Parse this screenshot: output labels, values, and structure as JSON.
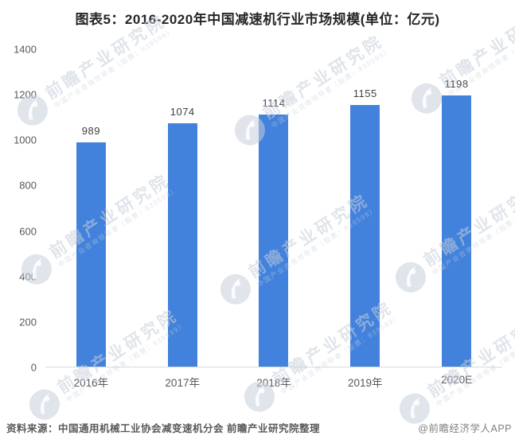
{
  "title": "图表5：2016-2020年中国减速机行业市场规模(单位：亿元)",
  "chart_data": {
    "type": "bar",
    "title": "图表5：2016-2020年中国减速机行业市场规模(单位：亿元)",
    "unit": "亿元",
    "categories": [
      "2016年",
      "2017年",
      "2018年",
      "2019年",
      "2020E"
    ],
    "values": [
      989,
      1074,
      1114,
      1155,
      1198
    ],
    "xlabel": "",
    "ylabel": "",
    "ylim": [
      0,
      1400
    ],
    "yticks": [
      0,
      200,
      400,
      600,
      800,
      1000,
      1200,
      1400
    ],
    "grid": false,
    "legend": false,
    "data_labels": true,
    "bar_color": "#4282DC"
  },
  "footer": {
    "source": "资料来源：中国通用机械工业协会减变速机分会 前瞻产业研究院整理",
    "credit": "@前瞻经济学人APP"
  },
  "watermark": {
    "logo": "qianzhan-logo",
    "text": "前瞻产业研究院",
    "subtext": "中国产业咨询领导者（股票：839599）",
    "color": "#cfd6df"
  },
  "colors": {
    "bar": "#4282DC",
    "title": "#262626",
    "axis_label": "#595959",
    "data_label": "#404040",
    "baseline": "#d9d9d9",
    "footer_source": "#595959",
    "footer_credit": "#808080"
  }
}
